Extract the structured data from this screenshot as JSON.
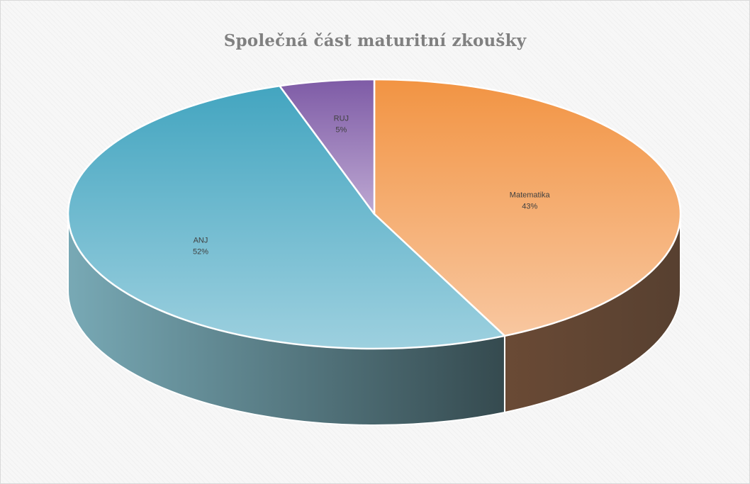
{
  "chart_data": {
    "type": "pie",
    "title": "Společná část maturitní zkoušky",
    "style": "3d",
    "categories": [
      "Matematika",
      "ANJ",
      "RUJ"
    ],
    "values": [
      43,
      52,
      5
    ],
    "labels": [
      "43%",
      "52%",
      "5%"
    ],
    "colors": {
      "Matematika": "#f5a464",
      "ANJ": "#6db8cf",
      "RUJ": "#a78cc0"
    },
    "legend": "none"
  }
}
